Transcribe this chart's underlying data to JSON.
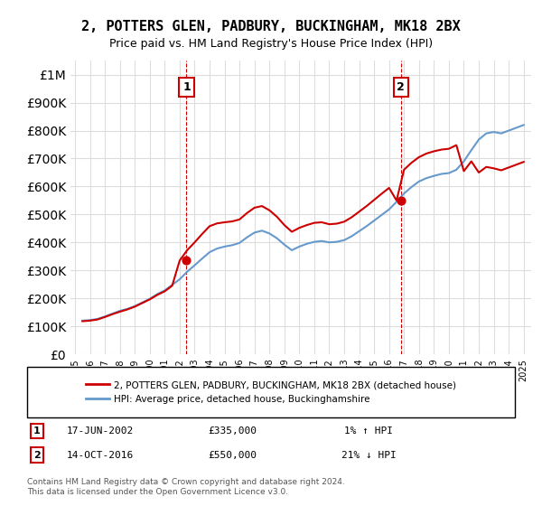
{
  "title": "2, POTTERS GLEN, PADBURY, BUCKINGHAM, MK18 2BX",
  "subtitle": "Price paid vs. HM Land Registry's House Price Index (HPI)",
  "purchase1": {
    "date": "17-JUN-2002",
    "price": 335000,
    "hpi_rel": "1% ↑ HPI",
    "label": "1"
  },
  "purchase2": {
    "date": "14-OCT-2016",
    "price": 550000,
    "hpi_rel": "21% ↓ HPI",
    "label": "2"
  },
  "legend_property": "2, POTTERS GLEN, PADBURY, BUCKINGHAM, MK18 2BX (detached house)",
  "legend_hpi": "HPI: Average price, detached house, Buckinghamshire",
  "footnote": "Contains HM Land Registry data © Crown copyright and database right 2024.\nThis data is licensed under the Open Government Licence v3.0.",
  "property_color": "#cc0000",
  "hpi_color": "#6699cc",
  "background_color": "#ffffff",
  "grid_color": "#dddddd",
  "ylim": [
    0,
    1050000
  ],
  "yticks": [
    0,
    100000,
    200000,
    300000,
    400000,
    500000,
    600000,
    700000,
    800000,
    900000,
    1000000
  ],
  "xlabel_years": [
    "1995",
    "1996",
    "1997",
    "1998",
    "1999",
    "2000",
    "2001",
    "2002",
    "2003",
    "2004",
    "2005",
    "2006",
    "2007",
    "2008",
    "2009",
    "2010",
    "2011",
    "2012",
    "2013",
    "2014",
    "2015",
    "2016",
    "2017",
    "2018",
    "2019",
    "2020",
    "2021",
    "2022",
    "2023",
    "2024",
    "2025"
  ],
  "hpi_data": {
    "years": [
      1995.5,
      1996.0,
      1996.5,
      1997.0,
      1997.5,
      1998.0,
      1998.5,
      1999.0,
      1999.5,
      2000.0,
      2000.5,
      2001.0,
      2001.5,
      2002.0,
      2002.5,
      2003.0,
      2003.5,
      2004.0,
      2004.5,
      2005.0,
      2005.5,
      2006.0,
      2006.5,
      2007.0,
      2007.5,
      2008.0,
      2008.5,
      2009.0,
      2009.5,
      2010.0,
      2010.5,
      2011.0,
      2011.5,
      2012.0,
      2012.5,
      2013.0,
      2013.5,
      2014.0,
      2014.5,
      2015.0,
      2015.5,
      2016.0,
      2016.5,
      2017.0,
      2017.5,
      2018.0,
      2018.5,
      2019.0,
      2019.5,
      2020.0,
      2020.5,
      2021.0,
      2021.5,
      2022.0,
      2022.5,
      2023.0,
      2023.5,
      2024.0,
      2024.5,
      2025.0
    ],
    "values": [
      120000,
      122000,
      126000,
      135000,
      145000,
      155000,
      162000,
      172000,
      185000,
      198000,
      215000,
      228000,
      248000,
      268000,
      295000,
      318000,
      342000,
      365000,
      378000,
      385000,
      390000,
      398000,
      418000,
      435000,
      442000,
      432000,
      415000,
      392000,
      372000,
      385000,
      395000,
      402000,
      405000,
      400000,
      402000,
      408000,
      422000,
      440000,
      458000,
      478000,
      498000,
      518000,
      545000,
      575000,
      598000,
      618000,
      630000,
      638000,
      645000,
      648000,
      660000,
      690000,
      730000,
      768000,
      790000,
      795000,
      790000,
      800000,
      810000,
      820000
    ]
  },
  "property_data": {
    "years": [
      1995.5,
      1996.0,
      1996.5,
      1997.0,
      1997.5,
      1998.0,
      1998.5,
      1999.0,
      1999.5,
      2000.0,
      2000.5,
      2001.0,
      2001.5,
      2002.0,
      2002.5,
      2003.0,
      2003.5,
      2004.0,
      2004.5,
      2005.0,
      2005.5,
      2006.0,
      2006.5,
      2007.0,
      2007.5,
      2008.0,
      2008.5,
      2009.0,
      2009.5,
      2010.0,
      2010.5,
      2011.0,
      2011.5,
      2012.0,
      2012.5,
      2013.0,
      2013.5,
      2014.0,
      2014.5,
      2015.0,
      2015.5,
      2016.0,
      2016.5,
      2017.0,
      2017.5,
      2018.0,
      2018.5,
      2019.0,
      2019.5,
      2020.0,
      2020.5,
      2021.0,
      2021.5,
      2022.0,
      2022.5,
      2023.0,
      2023.5,
      2024.0,
      2024.5,
      2025.0
    ],
    "values": [
      118000,
      120000,
      124000,
      133000,
      143000,
      152000,
      160000,
      170000,
      183000,
      196000,
      212000,
      225000,
      245000,
      335000,
      372000,
      400000,
      430000,
      458000,
      468000,
      472000,
      475000,
      482000,
      505000,
      524000,
      530000,
      515000,
      492000,
      462000,
      438000,
      452000,
      462000,
      470000,
      472000,
      465000,
      467000,
      474000,
      490000,
      510000,
      530000,
      552000,
      574000,
      595000,
      550000,
      660000,
      685000,
      705000,
      718000,
      726000,
      732000,
      735000,
      748000,
      655000,
      690000,
      650000,
      670000,
      665000,
      658000,
      668000,
      678000,
      688000
    ]
  },
  "purchase1_year": 2002.46,
  "purchase1_price": 335000,
  "purchase2_year": 2016.79,
  "purchase2_price": 550000
}
